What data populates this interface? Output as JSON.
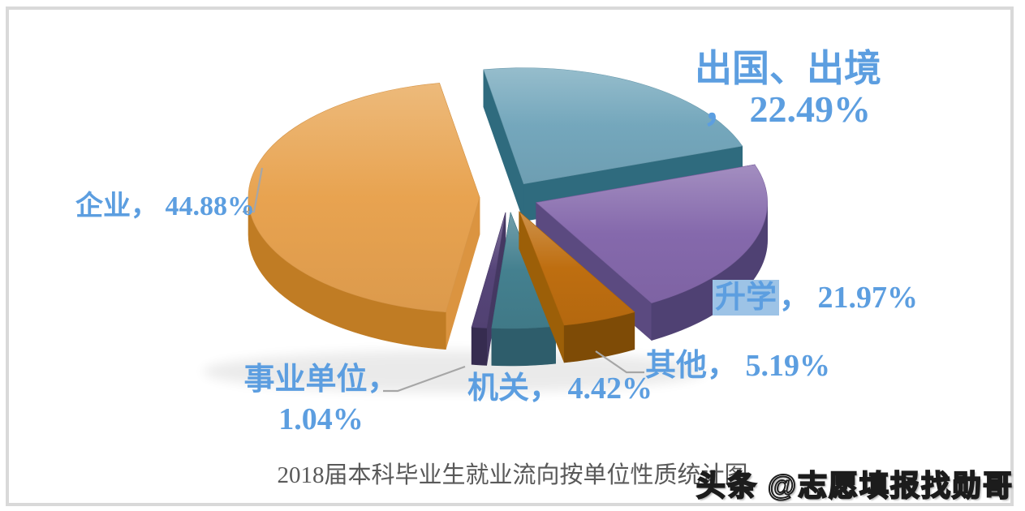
{
  "chart_data": {
    "type": "pie",
    "style": "3d-exploded",
    "title": "2018届本科毕业生就业流向按单位性质统计图",
    "unit": "%",
    "legend_position": "none",
    "labels_on_chart": true,
    "slices": [
      {
        "name": "abroad",
        "label": "出国、出境",
        "value": 22.49,
        "color": "#74A7BC",
        "side": "#2B6274",
        "cut": "#2F6B7E"
      },
      {
        "name": "further-study",
        "label": "升学",
        "value": 21.97,
        "color": "#8569AC",
        "side": "#4F4173",
        "cut": "#5B4A80"
      },
      {
        "name": "other",
        "label": "其他",
        "value": 5.19,
        "color": "#BE6E10",
        "side": "#7E4B06",
        "cut": "#9C5F08"
      },
      {
        "name": "government",
        "label": "机关",
        "value": 4.42,
        "color": "#44808F",
        "side": "#2E5D6B",
        "cut": "#396F7D"
      },
      {
        "name": "institution",
        "label": "事业单位",
        "value": 1.04,
        "color": "#564579",
        "side": "#362C50",
        "cut": "#443862"
      },
      {
        "name": "enterprise",
        "label": "企业",
        "value": 44.88,
        "color": "#E8A350",
        "side": "#C07C24",
        "cut": "#DB9440"
      }
    ]
  },
  "labels": {
    "abroad_line1": "出国、出境",
    "abroad_line2": "， 22.49%",
    "enterprise": "企业， 44.88%",
    "further_prefix": "升学",
    "further_suffix": "， 21.97%",
    "other": "其他， 5.19%",
    "government": "机关， 4.42%",
    "institution_line1": "事业单位，",
    "institution_line2": "1.04%"
  },
  "watermark": "头条 @志愿填报找勋哥",
  "colors": {
    "label_text": "#5C9EE0",
    "highlight": "#9DC3E6",
    "leader": "#A6A6A6",
    "title": "#595959",
    "frame": "#D9D9D9",
    "background": "#FFFFFF"
  }
}
